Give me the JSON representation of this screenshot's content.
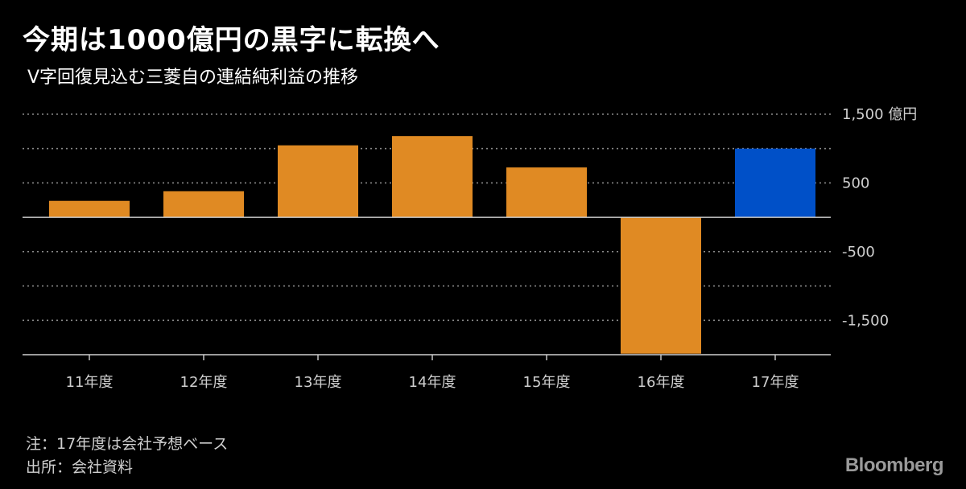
{
  "header": {
    "title": "今期は1000億円の黒字に転換へ",
    "subtitle": "V字回復見込む三菱自の連結純利益の推移"
  },
  "footer": {
    "note": "注：17年度は会社予想ベース",
    "source": "出所：会社資料",
    "brand": "Bloomberg"
  },
  "colors": {
    "background": "#000000",
    "bar_actual": "#E08A23",
    "bar_forecast": "#0050C8",
    "gridline": "#8a8a8a",
    "axis_text": "#cfcfcf"
  },
  "chart_data": {
    "type": "bar",
    "title": "今期は1000億円の黒字に転換へ",
    "subtitle": "V字回復見込む三菱自の連結純利益の推移",
    "categories": [
      "11年度",
      "12年度",
      "13年度",
      "14年度",
      "15年度",
      "16年度",
      "17年度"
    ],
    "values": [
      239,
      379,
      1047,
      1182,
      725,
      -1985,
      1000
    ],
    "forecast": [
      false,
      false,
      false,
      false,
      false,
      false,
      true
    ],
    "unit": "億円",
    "ylim": [
      -2000,
      1500
    ],
    "yticks": [
      1500,
      1000,
      500,
      0,
      -500,
      -1000,
      -1500
    ],
    "ytick_labels": [
      "1,500 億円",
      "",
      "500",
      "",
      "-500",
      "",
      "-1,500"
    ],
    "grid": true,
    "xlabel": "",
    "ylabel": "億円"
  }
}
